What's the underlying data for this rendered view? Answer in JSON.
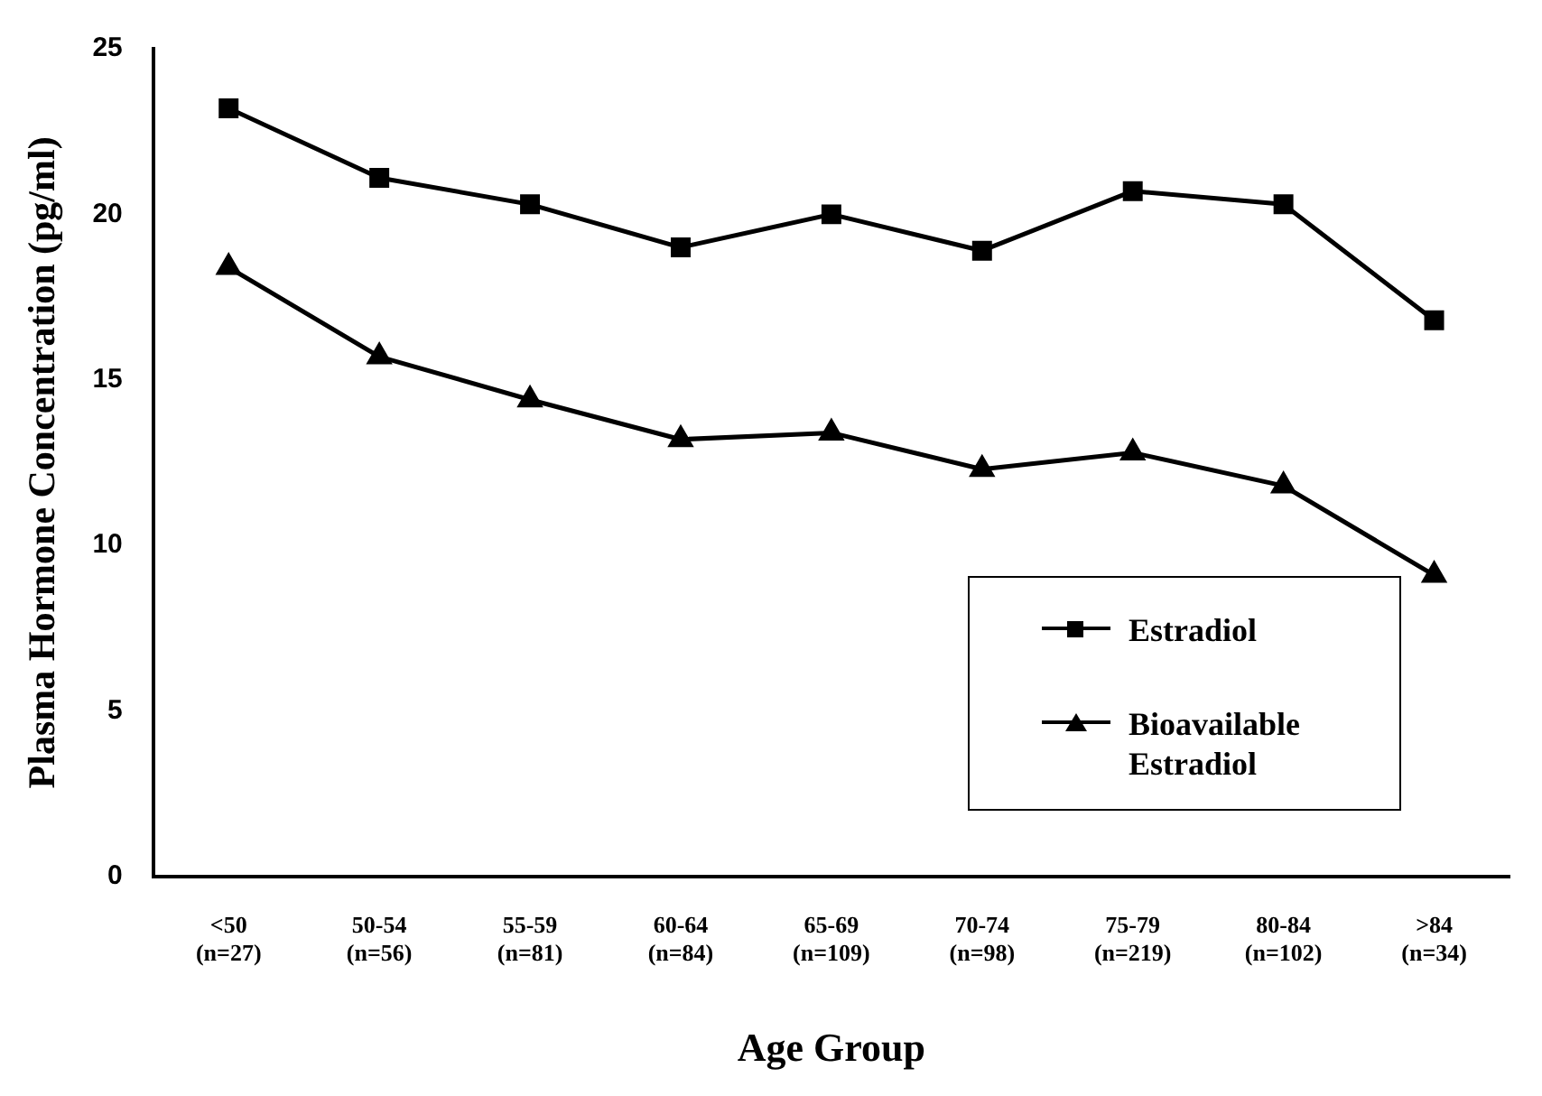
{
  "chart_data": {
    "type": "line",
    "xlabel": "Age Group",
    "ylabel": "Plasma Hormone Concentration (pg/ml)",
    "categories": [
      "<50\n(n=27)",
      "50-54\n(n=56)",
      "55-59\n(n=81)",
      "60-64\n(n=84)",
      "65-69\n(n=109)",
      "70-74\n(n=98)",
      "75-79\n(n=219)",
      "80-84\n(n=102)",
      ">84\n(n=34)"
    ],
    "series": [
      {
        "name": "Estradiol",
        "color": "#000000",
        "marker": "square",
        "values": [
          23.2,
          21.1,
          20.3,
          19.0,
          20.0,
          18.9,
          20.7,
          20.3,
          16.8
        ]
      },
      {
        "name": "Bioavailable Estradiol",
        "color": "#000000",
        "marker": "triangle",
        "values": [
          18.4,
          15.7,
          14.4,
          13.2,
          13.4,
          12.3,
          12.8,
          11.8,
          9.1
        ]
      }
    ],
    "ylim": [
      0,
      25
    ],
    "yticks": [
      0,
      5,
      10,
      15,
      20,
      25
    ],
    "grid": false,
    "legend": "bottom right",
    "line_style": "solid"
  }
}
